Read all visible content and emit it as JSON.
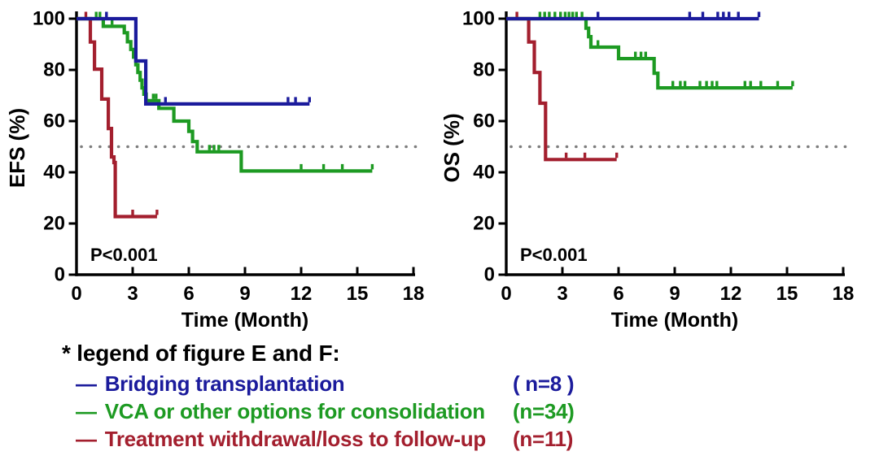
{
  "palette": {
    "blue": "#1b1b9c",
    "green": "#1d9a22",
    "red": "#a31f2e",
    "axis": "#000000",
    "dotted": "#7d7d7d",
    "text": "#000000"
  },
  "chart_data": [
    {
      "type": "line",
      "subtype": "kaplan-meier-step",
      "panel": "EFS",
      "ylabel": "EFS (%)",
      "xlabel": "Time (Month)",
      "pvalue": "P<0.001",
      "xlim": [
        0,
        18
      ],
      "ylim": [
        0,
        100
      ],
      "xticks": [
        0,
        3,
        6,
        9,
        12,
        15,
        18
      ],
      "yticks": [
        0,
        20,
        40,
        60,
        80,
        100
      ],
      "reference_line_y": 50,
      "grid": false,
      "layout": {
        "x0": 94,
        "ylabel_x": 30
      },
      "series": [
        {
          "name": "Treatment withdrawal/loss to follow-up",
          "color": "red",
          "steps": [
            [
              0,
              100
            ],
            [
              0.74,
              90.9
            ],
            [
              0.96,
              80.3
            ],
            [
              1.35,
              68.6
            ],
            [
              1.7,
              57.1
            ],
            [
              1.87,
              46
            ],
            [
              2.0,
              43.8
            ],
            [
              2.07,
              22.7
            ]
          ],
          "end": 4.3,
          "censors": [
            [
              0.5,
              100
            ],
            [
              3.0,
              22.7
            ]
          ],
          "end_censor": true
        },
        {
          "name": "VCA or other options for consolidation",
          "color": "green",
          "steps": [
            [
              0,
              100
            ],
            [
              1.43,
              97
            ],
            [
              2.55,
              94.5
            ],
            [
              2.72,
              91
            ],
            [
              2.9,
              88
            ],
            [
              3.05,
              85
            ],
            [
              3.17,
              82
            ],
            [
              3.28,
              79
            ],
            [
              3.4,
              76
            ],
            [
              3.5,
              73
            ],
            [
              3.6,
              70.5
            ],
            [
              3.72,
              68
            ],
            [
              4.4,
              65
            ],
            [
              5.2,
              60
            ],
            [
              6.0,
              56
            ],
            [
              6.2,
              52
            ],
            [
              6.45,
              48
            ],
            [
              8.8,
              40.5
            ]
          ],
          "end": 15.8,
          "censors": [
            [
              1.05,
              100
            ],
            [
              1.25,
              100
            ],
            [
              1.9,
              97
            ],
            [
              4.1,
              68
            ],
            [
              4.25,
              68
            ],
            [
              7.1,
              48
            ],
            [
              7.35,
              48
            ],
            [
              7.6,
              48
            ],
            [
              12.0,
              40.5
            ],
            [
              13.2,
              40.5
            ],
            [
              14.2,
              40.5
            ]
          ],
          "end_censor": true
        },
        {
          "name": "Bridging transplantation",
          "color": "blue",
          "steps": [
            [
              0,
              100
            ],
            [
              3.17,
              83.5
            ],
            [
              3.7,
              66.7
            ]
          ],
          "end": 12.45,
          "censors": [
            [
              1.6,
              100
            ],
            [
              4.75,
              66.7
            ],
            [
              11.3,
              66.7
            ],
            [
              11.7,
              66.7
            ]
          ],
          "end_censor": true
        }
      ]
    },
    {
      "type": "line",
      "subtype": "kaplan-meier-step",
      "panel": "OS",
      "ylabel": "OS (%)",
      "xlabel": "Time (Month)",
      "pvalue": "P<0.001",
      "xlim": [
        0,
        18
      ],
      "ylim": [
        0,
        100
      ],
      "xticks": [
        0,
        3,
        6,
        9,
        12,
        15,
        18
      ],
      "yticks": [
        0,
        20,
        40,
        60,
        80,
        100
      ],
      "reference_line_y": 50,
      "grid": false,
      "layout": {
        "x0": 82,
        "ylabel_x": 24
      },
      "series": [
        {
          "name": "Treatment withdrawal/loss to follow-up",
          "color": "red",
          "steps": [
            [
              0,
              100
            ],
            [
              1.2,
              90.9
            ],
            [
              1.5,
              79
            ],
            [
              1.8,
              67
            ],
            [
              2.1,
              45
            ]
          ],
          "end": 5.9,
          "censors": [
            [
              0.57,
              100
            ],
            [
              3.2,
              45
            ],
            [
              4.2,
              45
            ]
          ],
          "end_censor": true
        },
        {
          "name": "VCA or other options for consolidation",
          "color": "green",
          "steps": [
            [
              0,
              100
            ],
            [
              4.26,
              96.3
            ],
            [
              4.4,
              93
            ],
            [
              4.52,
              88.9
            ],
            [
              6.0,
              84.4
            ],
            [
              7.9,
              78.7
            ],
            [
              8.1,
              73
            ]
          ],
          "end": 15.3,
          "censors": [
            [
              1.8,
              100
            ],
            [
              2.05,
              100
            ],
            [
              2.3,
              100
            ],
            [
              2.6,
              100
            ],
            [
              2.9,
              100
            ],
            [
              3.15,
              100
            ],
            [
              3.35,
              100
            ],
            [
              3.55,
              100
            ],
            [
              3.75,
              100
            ],
            [
              4.05,
              100
            ],
            [
              4.9,
              88.9
            ],
            [
              6.9,
              84.4
            ],
            [
              7.2,
              84.4
            ],
            [
              7.45,
              84.4
            ],
            [
              8.9,
              73
            ],
            [
              9.3,
              73
            ],
            [
              9.55,
              73
            ],
            [
              10.35,
              73
            ],
            [
              10.7,
              73
            ],
            [
              11.0,
              73
            ],
            [
              11.25,
              73
            ],
            [
              12.75,
              73
            ],
            [
              13.05,
              73
            ],
            [
              13.6,
              73
            ],
            [
              14.5,
              73
            ]
          ],
          "end_censor": true
        },
        {
          "name": "Bridging transplantation",
          "color": "blue",
          "steps": [
            [
              0,
              100
            ]
          ],
          "end": 13.5,
          "censors": [
            [
              4.9,
              100
            ],
            [
              9.8,
              100
            ],
            [
              10.5,
              100
            ],
            [
              11.3,
              100
            ],
            [
              11.6,
              100
            ],
            [
              11.9,
              100
            ],
            [
              12.4,
              100
            ]
          ],
          "end_censor": true
        }
      ]
    }
  ],
  "legend": {
    "title": "* legend of figure E and F:",
    "items": [
      {
        "dash": "—",
        "label": "Bridging transplantation",
        "n": "( n=8 )",
        "color": "blue"
      },
      {
        "dash": "—",
        "label": "VCA or other options for consolidation",
        "n": "(n=34)",
        "color": "green"
      },
      {
        "dash": "—",
        "label": "Treatment withdrawal/loss to follow-up",
        "n": "(n=11)",
        "color": "red"
      }
    ]
  }
}
